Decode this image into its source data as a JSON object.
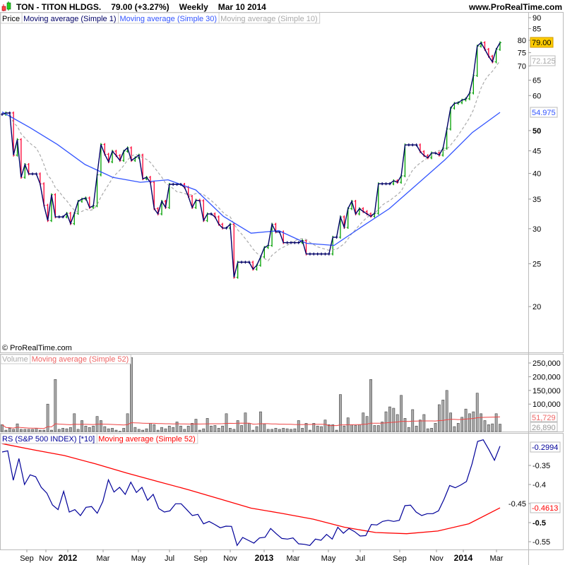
{
  "header": {
    "symbol": "TON - TITON HLDGS.",
    "price": "79.00 (+3.27%)",
    "period": "Weekly",
    "date": "Mar 10 2014",
    "site": "www.ProRealTime.com",
    "logo_icon": "candlestick-icon"
  },
  "price_panel": {
    "legend": [
      "Price",
      "Moving average (Simple 1)",
      "Moving average (Simple 30)",
      "Moving average (Simple 10)"
    ],
    "copyright": "© ProRealTime.com",
    "tags": {
      "last": "79.00",
      "ma10": "72.125",
      "ma30": "54.975"
    }
  },
  "volume_panel": {
    "legend": [
      "Volume",
      "Moving average (Simple 52)"
    ],
    "tags": {
      "ma52": "51,729",
      "last": "26,890"
    }
  },
  "rs_panel": {
    "legend": [
      "RS (S&P 500 INDEX) [*10]",
      "Moving average (Simple 52)"
    ],
    "tags": {
      "rs": "-0.2994",
      "ma52": "-0.4613"
    }
  },
  "colors": {
    "up": "#00a000",
    "down": "#ff0033",
    "close_line": "#000066",
    "ma30": "#3355ff",
    "ma10": "#aaaaaa",
    "rs": "#000099",
    "rs_ma": "#ff0000",
    "volume_bar": "#999999",
    "tag_last": "#ffcc00"
  },
  "chart_data": [
    {
      "type": "line",
      "name": "price",
      "scale": "log",
      "frequency": "weekly",
      "last_date": "Mar 10 2014",
      "yticks": [
        "90",
        "85",
        "80",
        "75",
        "70",
        "65",
        "60",
        "50",
        "45",
        "40",
        "35",
        "30",
        "25",
        "20"
      ],
      "ylim": [
        17,
        92
      ],
      "closes": [
        54.4,
        54.8,
        54.8,
        44.0,
        47.7,
        39.2,
        41.9,
        39.9,
        39.9,
        39.9,
        37.9,
        33.9,
        31.3,
        35.8,
        31.9,
        31.9,
        31.9,
        32.5,
        30.8,
        32.5,
        34.6,
        35.0,
        35.2,
        33.5,
        33.8,
        39.7,
        46.5,
        44.2,
        42.5,
        44.9,
        43.9,
        42.8,
        44.9,
        45.7,
        42.8,
        43.4,
        44.0,
        38.9,
        39.2,
        38.2,
        33.3,
        32.4,
        34.6,
        33.5,
        37.8,
        37.8,
        37.8,
        37.8,
        37.2,
        35.5,
        33.5,
        34.8,
        34.7,
        31.3,
        32.4,
        32.4,
        31.9,
        30.7,
        30.1,
        30.1,
        30.7,
        23.3,
        25.2,
        25.2,
        25.2,
        25.2,
        24.3,
        24.8,
        25.9,
        27.2,
        27.5,
        30.7,
        29.5,
        29.5,
        27.9,
        27.9,
        27.9,
        27.9,
        27.9,
        28.2,
        26.3,
        26.3,
        26.3,
        26.3,
        26.3,
        26.3,
        26.3,
        28.7,
        28.7,
        31.9,
        30.2,
        33.3,
        34.6,
        32.4,
        33.3,
        32.8,
        32.4,
        32.0,
        32.5,
        37.9,
        37.9,
        37.9,
        37.9,
        38.5,
        38.2,
        39.5,
        46.4,
        46.4,
        46.4,
        46.4,
        44.8,
        43.9,
        43.4,
        44.5,
        44.5,
        44.0,
        45.6,
        50.4,
        56.2,
        57.6,
        57.8,
        58.6,
        59.0,
        60.8,
        66.6,
        77.6,
        79.0,
        76.3,
        73.6,
        71.5,
        76.3,
        79.0
      ],
      "ma30": [
        55.1,
        50.8,
        46.5,
        41.9,
        39.2,
        38.2,
        38.7,
        36.7,
        32.0,
        29.3,
        29.7,
        27.8,
        27.5,
        30.3,
        33.3,
        37.8,
        42.9,
        49.5,
        54.975
      ]
    },
    {
      "type": "bar",
      "name": "volume",
      "yticks": [
        "250,000",
        "200,000",
        "150,000",
        "100,000"
      ],
      "ylim": [
        0,
        270000
      ],
      "values": [
        25000,
        5000,
        12000,
        8000,
        28000,
        8000,
        8000,
        8000,
        8000,
        12000,
        5000,
        5000,
        100000,
        5000,
        190000,
        8000,
        12000,
        10000,
        15000,
        65000,
        8000,
        40000,
        20000,
        15000,
        20000,
        55000,
        40000,
        18000,
        10000,
        12000,
        5000,
        1000,
        12000,
        65000,
        270000,
        15000,
        8000,
        5000,
        10000,
        30000,
        25000,
        5000,
        15000,
        10000,
        20000,
        15000,
        35000,
        20000,
        8000,
        20000,
        30000,
        45000,
        5000,
        10000,
        48000,
        20000,
        22000,
        12000,
        20000,
        65000,
        12000,
        8000,
        40000,
        22000,
        68000,
        30000,
        5000,
        18000,
        72000,
        28000,
        8000,
        8000,
        12000,
        8000,
        12000,
        10000,
        8000,
        10000,
        40000,
        12000,
        30000,
        5000,
        30000,
        20000,
        18000,
        42000,
        25000,
        25000,
        5000,
        135000,
        20000,
        50000,
        25000,
        22000,
        25000,
        68000,
        55000,
        190000,
        22000,
        22000,
        35000,
        72000,
        90000,
        85000,
        62000,
        132000,
        48000,
        15000,
        80000,
        20000,
        42000,
        62000,
        10000,
        12000,
        30000,
        98000,
        115000,
        150000,
        68000,
        18000,
        30000,
        52000,
        82000,
        65000,
        72000,
        140000,
        65000,
        40000,
        25000,
        28000,
        65000,
        26890
      ]
    },
    {
      "type": "line",
      "name": "rs",
      "yticks": [
        "-0.35",
        "-0.4",
        "-0.45",
        "-0.5",
        "-0.55"
      ],
      "ylim": [
        -0.568,
        -0.265
      ],
      "rs": [
        -0.3148,
        -0.3117,
        -0.3889,
        -0.3321,
        -0.4,
        -0.3747,
        -0.3796,
        -0.4074,
        -0.4228,
        -0.4537,
        -0.466,
        -0.4179,
        -0.4722,
        -0.466,
        -0.4815,
        -0.4599,
        -0.458,
        -0.4753,
        -0.4444,
        -0.3877,
        -0.4198,
        -0.4074,
        -0.4259,
        -0.3938,
        -0.421,
        -0.4074,
        -0.4414,
        -0.4259,
        -0.463,
        -0.4722,
        -0.4691,
        -0.4506,
        -0.4506,
        -0.466,
        -0.4815,
        -0.4784,
        -0.5031,
        -0.4969,
        -0.5049,
        -0.5136,
        -0.5093,
        -0.5099,
        -0.5599,
        -0.5389,
        -0.5463,
        -0.5537,
        -0.5401,
        -0.5383,
        -0.5154,
        -0.529,
        -0.5414,
        -0.5432,
        -0.5401,
        -0.5556,
        -0.5568,
        -0.5599,
        -0.5432,
        -0.5463,
        -0.5309,
        -0.5432,
        -0.5123,
        -0.5278,
        -0.5154,
        -0.5235,
        -0.5352,
        -0.534,
        -0.5049,
        -0.5062,
        -0.4969,
        -0.4938,
        -0.4969,
        -0.4938,
        -0.4556,
        -0.4543,
        -0.4722,
        -0.4815,
        -0.4765,
        -0.4765,
        -0.4691,
        -0.4383,
        -0.4025,
        -0.4086,
        -0.4012,
        -0.392,
        -0.3457,
        -0.287,
        -0.2827,
        -0.3086,
        -0.3364,
        -0.2994
      ],
      "rs_ma52": [
        -0.293,
        -0.309,
        -0.324,
        -0.346,
        -0.37,
        -0.392,
        -0.414,
        -0.438,
        -0.462,
        -0.476,
        -0.491,
        -0.512,
        -0.526,
        -0.529,
        -0.522,
        -0.503,
        -0.4613
      ]
    }
  ],
  "xaxis": {
    "ticks": [
      {
        "label": "Sep",
        "bold": false
      },
      {
        "label": "Nov",
        "bold": false
      },
      {
        "label": "2012",
        "bold": true
      },
      {
        "label": "Mar",
        "bold": false
      },
      {
        "label": "May",
        "bold": false
      },
      {
        "label": "Jul",
        "bold": false
      },
      {
        "label": "Sep",
        "bold": false
      },
      {
        "label": "Nov",
        "bold": false
      },
      {
        "label": "2013",
        "bold": true
      },
      {
        "label": "Mar",
        "bold": false
      },
      {
        "label": "May",
        "bold": false
      },
      {
        "label": "Jul",
        "bold": false
      },
      {
        "label": "Sep",
        "bold": false
      },
      {
        "label": "Nov",
        "bold": false
      },
      {
        "label": "2014",
        "bold": true
      },
      {
        "label": "Mar",
        "bold": false
      }
    ]
  }
}
